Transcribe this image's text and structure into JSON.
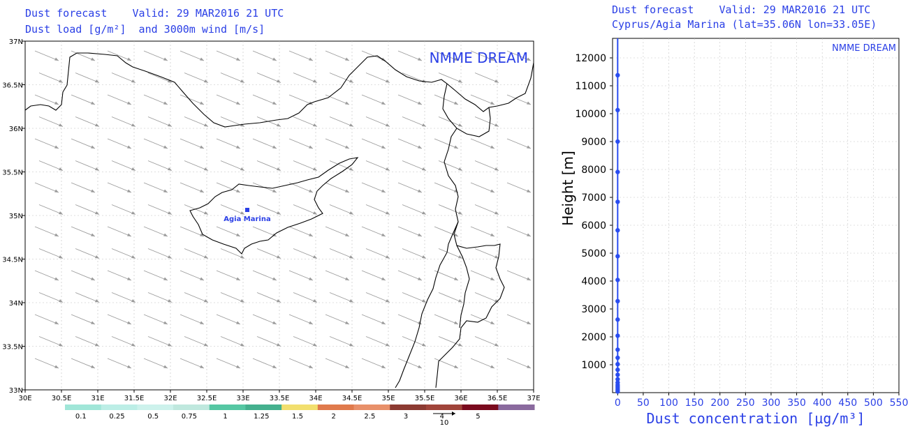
{
  "left_panel": {
    "title_line1": "Dust forecast    Valid: 29 MAR2016 21 UTC",
    "title_line2": "Dust load [g/m²]  and 3000m wind [m/s]",
    "watermark": "NMME DREAM",
    "station_label": "Agia Marina",
    "x_ticks": [
      "30E",
      "30.5E",
      "31E",
      "31.5E",
      "32E",
      "32.5E",
      "33E",
      "33.5E",
      "34E",
      "34.5E",
      "35E",
      "35.5E",
      "36E",
      "36.5E",
      "37E"
    ],
    "y_ticks": [
      "37N",
      "36.5N",
      "36N",
      "35.5N",
      "35N",
      "34.5N",
      "34N",
      "33.5N",
      "33N"
    ],
    "colorbar": {
      "labels": [
        "0.1",
        "0.25",
        "0.5",
        "0.75",
        "1",
        "1.25",
        "1.5",
        "2",
        "2.5",
        "3",
        "4",
        "5"
      ],
      "colors": [
        "#a0e6d8",
        "#bceee6",
        "#cdf2ec",
        "#bfe8de",
        "#55c7a3",
        "#44b08e",
        "#f2df6e",
        "#e07a4c",
        "#e8906a",
        "#8c3a32",
        "#a0443a",
        "#7a0a1e",
        "#8a6a9e"
      ]
    },
    "wind_reference_label": "10"
  },
  "right_panel": {
    "title_line1": "Dust forecast    Valid: 29 MAR2016 21 UTC",
    "title_line2": "Cyprus/Agia Marina (lat=35.06N lon=33.05E)",
    "watermark": "NMME DREAM"
  },
  "chart_data": [
    {
      "type": "map",
      "title": "Dust forecast Valid: 29 MAR2016 21 UTC",
      "subtitle": "Dust load [g/m²] and 3000m wind [m/s]",
      "xlim": [
        30,
        37
      ],
      "ylim": [
        33,
        37
      ],
      "x_ticks": [
        "30E",
        "30.5E",
        "31E",
        "31.5E",
        "32E",
        "32.5E",
        "33E",
        "33.5E",
        "34E",
        "34.5E",
        "35E",
        "35.5E",
        "36E",
        "36.5E",
        "37E"
      ],
      "y_ticks": [
        "37N",
        "36.5N",
        "36N",
        "35.5N",
        "35N",
        "34.5N",
        "34N",
        "33.5N",
        "33N"
      ],
      "grid": true,
      "station": {
        "name": "Agia Marina",
        "lat": 35.06,
        "lon": 33.05
      },
      "wind": {
        "direction": "from west-northwest",
        "reference_speed": 10
      },
      "dust_load_levels": [
        0.1,
        0.25,
        0.5,
        0.75,
        1,
        1.25,
        1.5,
        2,
        2.5,
        3,
        4,
        5
      ]
    },
    {
      "type": "line",
      "title": "Dust forecast Valid: 29 MAR2016 21 UTC",
      "subtitle": "Cyprus/Agia Marina (lat=35.06N lon=33.05E)",
      "xlabel": "Dust concentration [µg/m³]",
      "ylabel": "Height [m]",
      "xlim": [
        -10,
        550
      ],
      "ylim": [
        0,
        12700
      ],
      "x_ticks": [
        0,
        50,
        100,
        150,
        200,
        250,
        300,
        350,
        400,
        450,
        500,
        550
      ],
      "y_ticks": [
        1000,
        2000,
        3000,
        4000,
        5000,
        6000,
        7000,
        8000,
        9000,
        10000,
        11000,
        12000
      ],
      "grid": true,
      "series": [
        {
          "x": [
            0,
            0,
            0,
            0,
            0,
            0,
            0,
            0,
            0,
            0,
            0,
            0,
            0,
            0,
            0,
            0,
            0,
            0,
            0,
            0,
            0,
            0,
            0
          ],
          "y": [
            40,
            90,
            140,
            200,
            270,
            360,
            480,
            640,
            820,
            1020,
            1250,
            1540,
            2040,
            2620,
            3280,
            4040,
            4890,
            5820,
            6840,
            7910,
            9000,
            10130,
            11380
          ]
        }
      ]
    }
  ]
}
